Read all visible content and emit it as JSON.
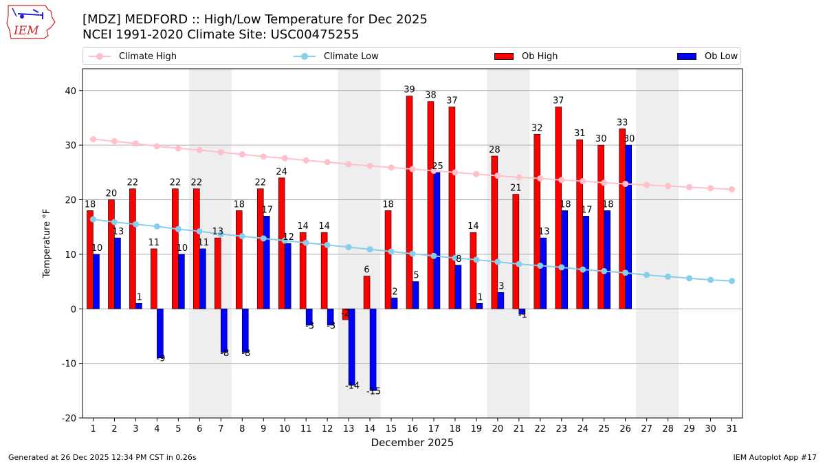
{
  "header": {
    "title_line1": "[MDZ] MEDFORD :: High/Low Temperature for Dec 2025",
    "title_line2": "NCEI 1991-2020 Climate Site: USC00475255",
    "logo_text": "IEM"
  },
  "footer": {
    "generated": "Generated at 26 Dec 2025 12:34 PM CST in 0.26s",
    "app": "IEM Autoplot App #17"
  },
  "colors": {
    "climate_high": "#ffc0cb",
    "climate_low": "#87ceeb",
    "ob_high": "#ff0000",
    "ob_low": "#0000ff",
    "weekend_shade": "#eeeeee",
    "grid": "#b0b0b0"
  },
  "chart_data": {
    "type": "bar",
    "xlabel": "December 2025",
    "ylabel": "Temperature °F",
    "ylim": [
      -20,
      44
    ],
    "yticks": [
      -20,
      -10,
      0,
      10,
      20,
      30,
      40
    ],
    "xlim": [
      0.5,
      31.5
    ],
    "days": [
      1,
      2,
      3,
      4,
      5,
      6,
      7,
      8,
      9,
      10,
      11,
      12,
      13,
      14,
      15,
      16,
      17,
      18,
      19,
      20,
      21,
      22,
      23,
      24,
      25,
      26,
      27,
      28,
      29,
      30,
      31
    ],
    "grid": "horizontal",
    "legend_placement": "top",
    "shaded_day_ranges": [
      [
        6,
        7
      ],
      [
        13,
        14
      ],
      [
        20,
        21
      ],
      [
        27,
        28
      ]
    ],
    "series": [
      {
        "name": "Climate High",
        "kind": "line",
        "values": [
          31.1,
          30.7,
          30.3,
          29.8,
          29.4,
          29.1,
          28.7,
          28.3,
          27.9,
          27.6,
          27.2,
          26.9,
          26.5,
          26.2,
          25.9,
          25.6,
          25.3,
          25.0,
          24.7,
          24.4,
          24.1,
          23.9,
          23.6,
          23.4,
          23.1,
          22.9,
          22.7,
          22.5,
          22.3,
          22.1,
          21.9
        ]
      },
      {
        "name": "Climate Low",
        "kind": "line",
        "values": [
          16.4,
          15.9,
          15.5,
          15.1,
          14.6,
          14.2,
          13.7,
          13.3,
          12.9,
          12.5,
          12.1,
          11.7,
          11.3,
          10.9,
          10.5,
          10.1,
          9.7,
          9.3,
          9.0,
          8.6,
          8.2,
          7.9,
          7.6,
          7.2,
          6.9,
          6.6,
          6.2,
          5.9,
          5.6,
          5.3,
          5.1
        ]
      },
      {
        "name": "Ob High",
        "kind": "bar",
        "values": [
          18,
          20,
          22,
          11,
          22,
          22,
          13,
          18,
          22,
          24,
          14,
          14,
          -2,
          6,
          18,
          39,
          38,
          37,
          14,
          28,
          21,
          32,
          37,
          31,
          30,
          33
        ]
      },
      {
        "name": "Ob Low",
        "kind": "bar",
        "values": [
          10,
          13,
          1,
          -9,
          10,
          11,
          -8,
          -8,
          17,
          12,
          -3,
          -3,
          -14,
          -15,
          2,
          5,
          25,
          8,
          1,
          3,
          -1,
          13,
          18,
          17,
          18,
          30
        ]
      }
    ]
  }
}
